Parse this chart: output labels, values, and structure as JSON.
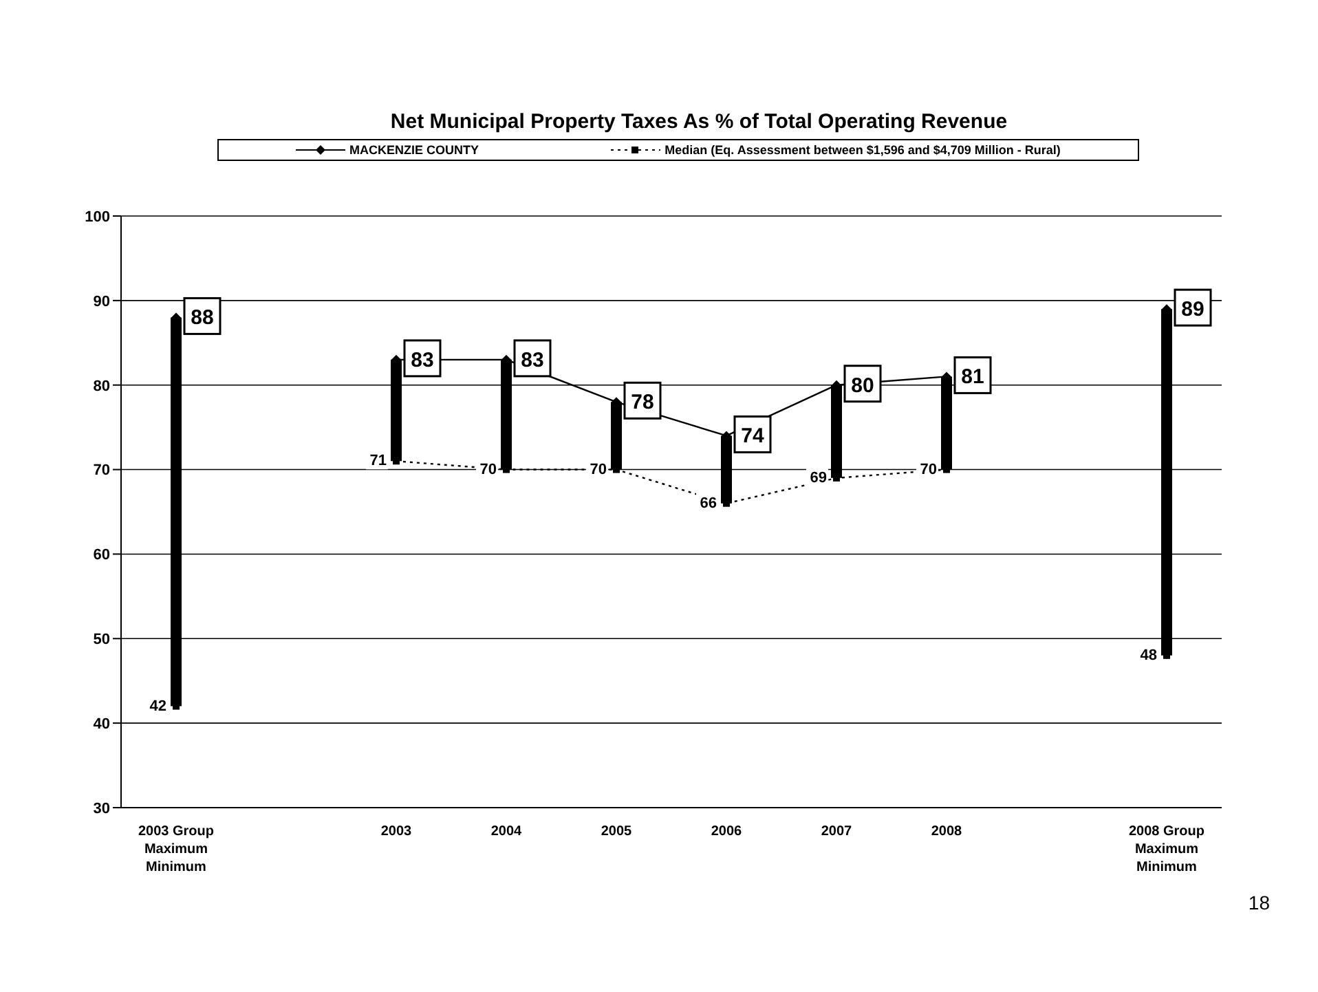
{
  "chart_data": {
    "type": "line",
    "title": "Net Municipal Property Taxes As % of Total Operating Revenue",
    "categories": [
      "2003 Group\nMaximum\nMinimum",
      null,
      "2003",
      "2004",
      "2005",
      "2006",
      "2007",
      "2008",
      null,
      "2008 Group\nMaximum\nMinimum"
    ],
    "series": [
      {
        "type": "bar",
        "color": "#000000",
        "base": [
          42,
          null,
          71,
          70,
          70,
          66,
          69,
          70,
          null,
          48
        ],
        "values": [
          46,
          null,
          12,
          13,
          8,
          8,
          11,
          11,
          null,
          41
        ]
      },
      {
        "name": "MACKENZIE COUNTY",
        "color": "#000000",
        "marker": "diamond",
        "line_style": "solid",
        "data_labels": true,
        "values": [
          88,
          null,
          83,
          83,
          78,
          74,
          80,
          81,
          null,
          89
        ]
      },
      {
        "name": "Median (Eq. Assessment between $1,596 and $4,709 Million - Rural)",
        "color": "#000000",
        "marker": "square",
        "line_style": "dotted",
        "data_labels": true,
        "values": [
          42,
          null,
          71,
          70,
          70,
          66,
          69,
          70,
          null,
          48
        ]
      }
    ],
    "ylim": [
      30,
      100
    ],
    "yticks": [
      30,
      40,
      50,
      60,
      70,
      80,
      90,
      100
    ],
    "grid": "y",
    "legend": "top",
    "annotations": [
      "18"
    ]
  }
}
